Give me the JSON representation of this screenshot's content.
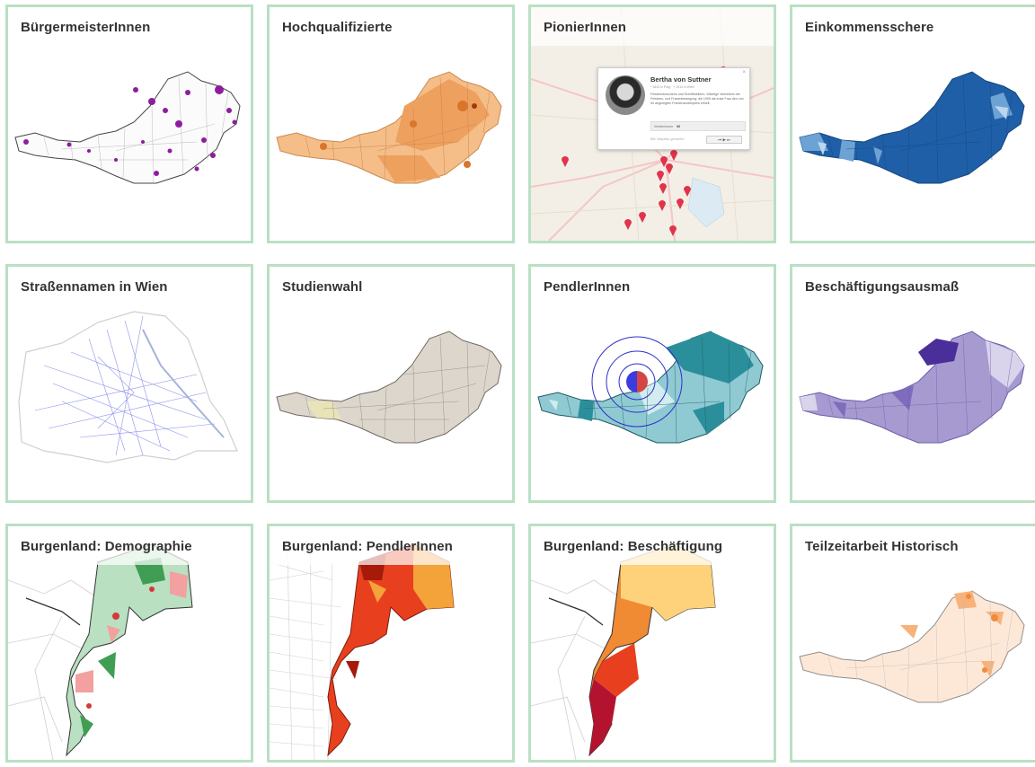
{
  "cards": [
    {
      "title": "BürgermeisterInnen"
    },
    {
      "title": "Hochqualifizierte"
    },
    {
      "title": "PionierInnen"
    },
    {
      "title": "Einkommensschere"
    },
    {
      "title": "Straßennamen in Wien"
    },
    {
      "title": "Studienwahl"
    },
    {
      "title": "PendlerInnen"
    },
    {
      "title": "Beschäftigungsausmaß"
    },
    {
      "title": "Burgenland: Demographie"
    },
    {
      "title": "Burgenland: PendlerInnen"
    },
    {
      "title": "Burgenland: Beschäftigung"
    },
    {
      "title": "Teilzeitarbeit Historisch"
    }
  ],
  "popup": {
    "name": "Bertha von Suttner",
    "dates": "* 1843 in Prag · † 1914 in Wien",
    "description": "Friedensforscherin und Schriftstellerin. Wichtige Vertreterin der Friedens- und Frauenbewegung; die 1905 als erste Frau den von ihr angeregten Friedensnobelpreis erhielt.",
    "more": "Weiterlesen",
    "wiki_mark": "W",
    "source": "Bild: Wikipedia, gemeinfrei"
  },
  "colors": {
    "card_border": "#b9e0c3",
    "purple_mayors": "#8e1c9e",
    "orange_mid": "#f2a55c",
    "blue_dark": "#1f5fa8",
    "violet_dark": "#5a3d9e",
    "teal_dark": "#2b8f9b",
    "red_pin": "#e0344b"
  }
}
